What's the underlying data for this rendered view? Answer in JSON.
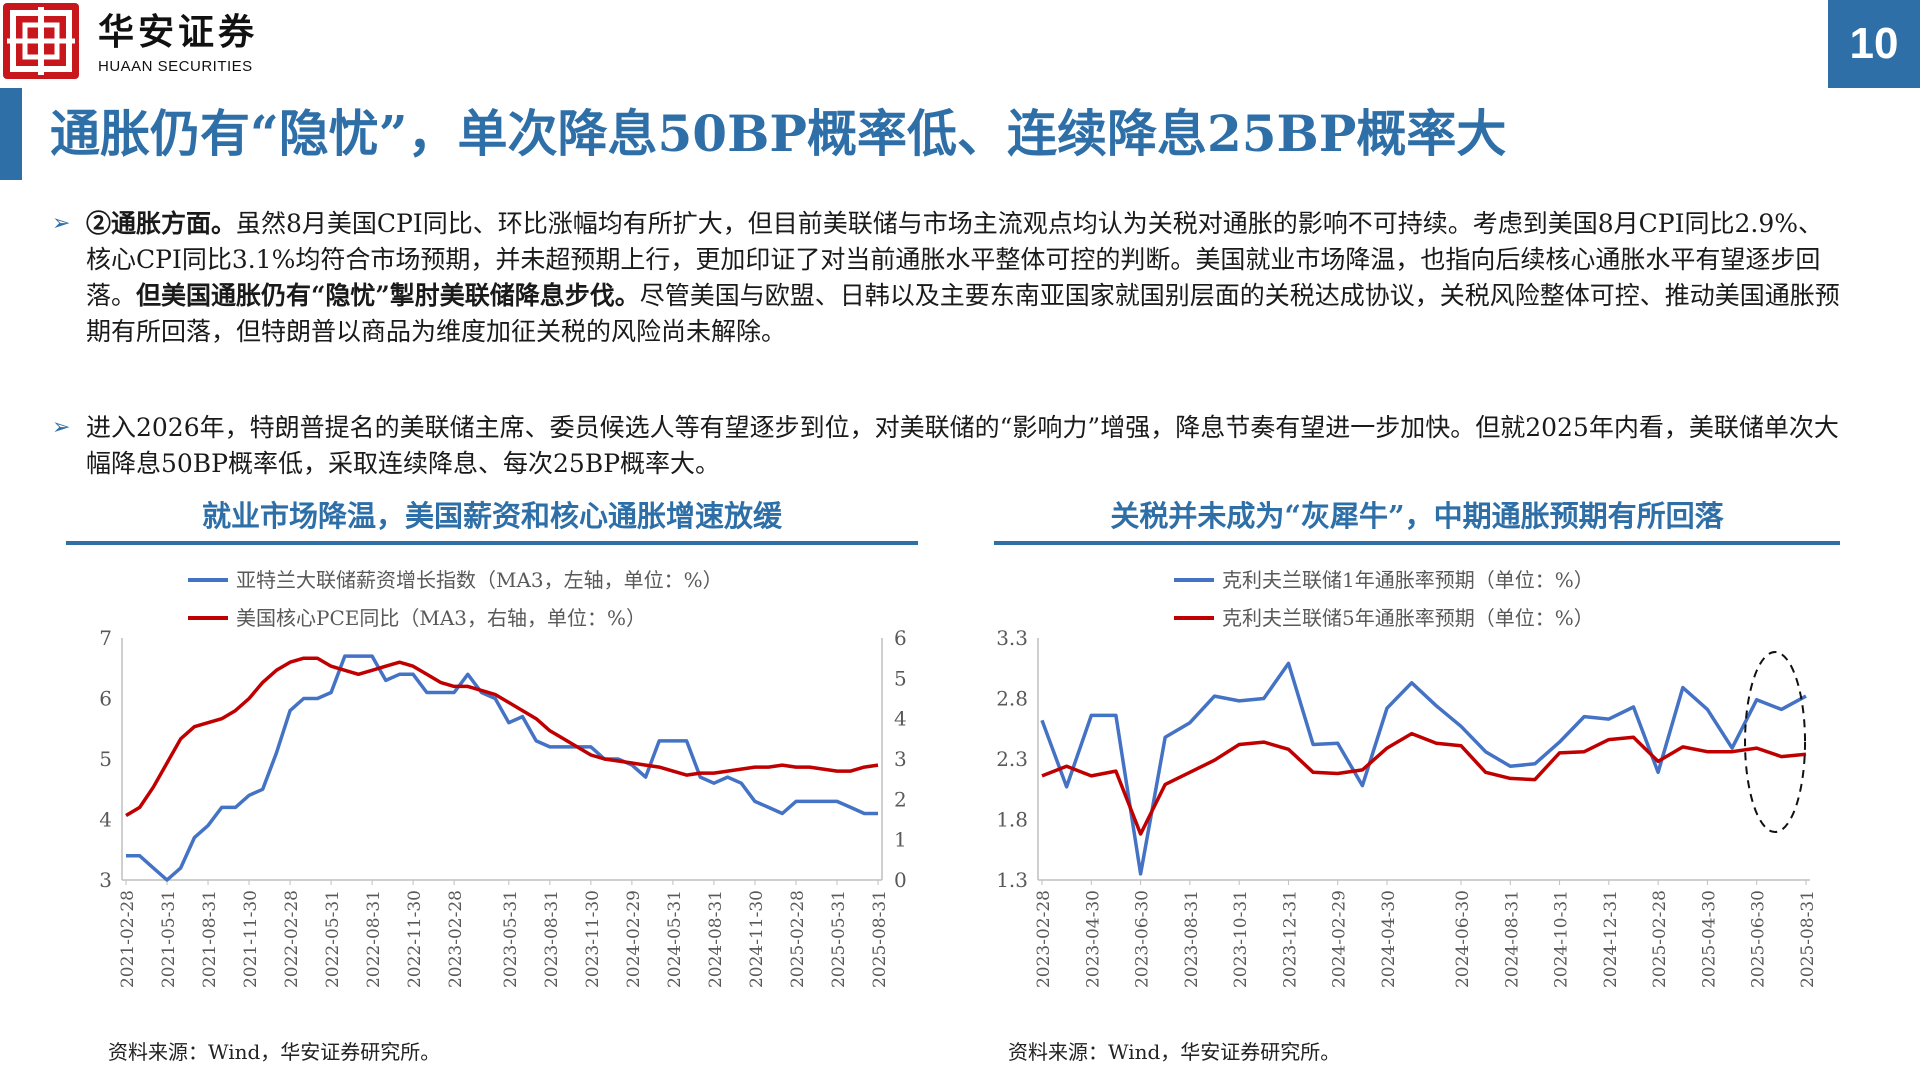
{
  "header": {
    "logo_cn": "华安证券",
    "logo_en": "HUAAN SECURITIES",
    "page_number": "10",
    "brand_color": "#c8161d",
    "accent_color": "#2e6fa8"
  },
  "title": "通胀仍有“隐忧”，单次降息50BP概率低、连续降息25BP概率大",
  "bullets": [
    {
      "parts": [
        {
          "text": "②通胀方面。",
          "bold": true
        },
        {
          "text": "虽然8月美国CPI同比、环比涨幅均有所扩大，但目前美联储与市场主流观点均认为关税对通胀的影响不可持续。考虑到美国8月CPI同比2.9%、核心CPI同比3.1%均符合市场预期，并未超预期上行，更加印证了对当前通胀水平整体可控的判断。美国就业市场降温，也指向后续核心通胀水平有望逐步回落。",
          "bold": false
        },
        {
          "text": "但美国通胀仍有“隐忧”掣肘美联储降息步伐。",
          "bold": true
        },
        {
          "text": "尽管美国与欧盟、日韩以及主要东南亚国家就国别层面的关税达成协议，关税风险整体可控、推动美国通胀预期有所回落，但特朗普以商品为维度加征关税的风险尚未解除。",
          "bold": false
        }
      ]
    },
    {
      "parts": [
        {
          "text": "进入2026年，特朗普提名的美联储主席、委员候选人等有望逐步到位，对美联储的“影响力”增强，降息节奏有望进一步加快。但就2025年内看，美联储单次大幅降息50BP概率低，采取连续降息、每次25BP概率大。",
          "bold": false
        }
      ]
    }
  ],
  "left_chart": {
    "heading": "就业市场降温，美国薪资和核心通胀增速放缓",
    "source": "资料来源：Wind，华安证券研究所。"
  },
  "right_chart": {
    "heading": "关税并未成为“灰犀牛”，中期通胀预期有所回落",
    "source": "资料来源：Wind，华安证券研究所。"
  },
  "chart_data": [
    {
      "type": "line",
      "dual_axis": true,
      "x_tick_labels": [
        "2021-02-28",
        "2021-05-31",
        "2021-08-31",
        "2021-11-30",
        "2022-02-28",
        "2022-05-31",
        "2022-08-31",
        "2022-11-30",
        "2023-02-28",
        "2023-05-31",
        "2023-08-31",
        "2023-11-30",
        "2024-02-29",
        "2024-05-31",
        "2024-08-31",
        "2024-11-30",
        "2025-02-28",
        "2025-05-31",
        "2025-08-31"
      ],
      "ylim_left": [
        3,
        7
      ],
      "yticks_left": [
        "3",
        "4",
        "5",
        "6",
        "7"
      ],
      "ylim_right": [
        0,
        6
      ],
      "yticks_right": [
        "0",
        "1",
        "2",
        "3",
        "4",
        "5",
        "6"
      ],
      "legend_position": "top",
      "series": [
        {
          "name": "亚特兰大联储薪资增长指数（MA3，左轴，单位：%）",
          "axis": "left",
          "color": "#4472c4",
          "values": [
            3.4,
            3.4,
            3.2,
            3.0,
            3.2,
            3.7,
            3.9,
            4.2,
            4.2,
            4.4,
            4.5,
            5.1,
            5.8,
            6.0,
            6.0,
            6.1,
            6.7,
            6.7,
            6.7,
            6.3,
            6.4,
            6.4,
            6.1,
            6.1,
            6.1,
            6.4,
            6.1,
            6.0,
            5.6,
            5.7,
            5.3,
            5.2,
            5.2,
            5.2,
            5.2,
            5.0,
            5.0,
            4.9,
            4.7,
            5.3,
            5.3,
            5.3,
            4.7,
            4.6,
            4.7,
            4.6,
            4.3,
            4.2,
            4.1,
            4.3,
            4.3,
            4.3,
            4.3,
            4.2,
            4.1,
            4.1
          ]
        },
        {
          "name": "美国核心PCE同比（MA3，右轴，单位：%）",
          "axis": "right",
          "color": "#c00000",
          "values": [
            1.6,
            1.8,
            2.3,
            2.9,
            3.5,
            3.8,
            3.9,
            4.0,
            4.2,
            4.5,
            4.9,
            5.2,
            5.4,
            5.5,
            5.5,
            5.3,
            5.2,
            5.1,
            5.2,
            5.3,
            5.4,
            5.3,
            5.1,
            4.9,
            4.8,
            4.8,
            4.7,
            4.6,
            4.4,
            4.2,
            4.0,
            3.7,
            3.5,
            3.3,
            3.1,
            3.0,
            2.95,
            2.9,
            2.85,
            2.8,
            2.7,
            2.6,
            2.65,
            2.65,
            2.7,
            2.75,
            2.8,
            2.8,
            2.85,
            2.8,
            2.8,
            2.75,
            2.7,
            2.7,
            2.8,
            2.85
          ]
        }
      ]
    },
    {
      "type": "line",
      "x_tick_labels": [
        "2023-02-28",
        "2023-04-30",
        "2023-06-30",
        "2023-08-31",
        "2023-10-31",
        "2023-12-31",
        "2024-02-29",
        "2024-04-30",
        "2024-06-30",
        "2024-08-31",
        "2024-10-31",
        "2024-12-31",
        "2025-02-28",
        "2025-04-30",
        "2025-06-30",
        "2025-08-31"
      ],
      "ylim": [
        1.3,
        3.3
      ],
      "yticks": [
        "1.3",
        "1.8",
        "2.3",
        "2.8",
        "3.3"
      ],
      "legend_position": "top",
      "annotation": "dashed ellipse highlighting latest months",
      "series": [
        {
          "name": "克利夫兰联储1年通胀率预期（单位：%）",
          "color": "#4472c4",
          "values": [
            2.62,
            2.07,
            2.66,
            2.66,
            1.35,
            2.48,
            2.6,
            2.82,
            2.78,
            2.8,
            3.09,
            2.42,
            2.43,
            2.08,
            2.72,
            2.93,
            2.74,
            2.57,
            2.36,
            2.24,
            2.26,
            2.44,
            2.65,
            2.63,
            2.73,
            2.19,
            2.89,
            2.71,
            2.39,
            2.79,
            2.71,
            2.82
          ]
        },
        {
          "name": "克利夫兰联储5年通胀率预期（单位：%）",
          "color": "#c00000",
          "values": [
            2.16,
            2.24,
            2.16,
            2.2,
            1.68,
            2.09,
            2.19,
            2.29,
            2.42,
            2.44,
            2.38,
            2.19,
            2.18,
            2.21,
            2.39,
            2.51,
            2.43,
            2.41,
            2.19,
            2.14,
            2.13,
            2.35,
            2.36,
            2.46,
            2.48,
            2.28,
            2.4,
            2.36,
            2.36,
            2.39,
            2.32,
            2.34
          ]
        }
      ]
    }
  ]
}
